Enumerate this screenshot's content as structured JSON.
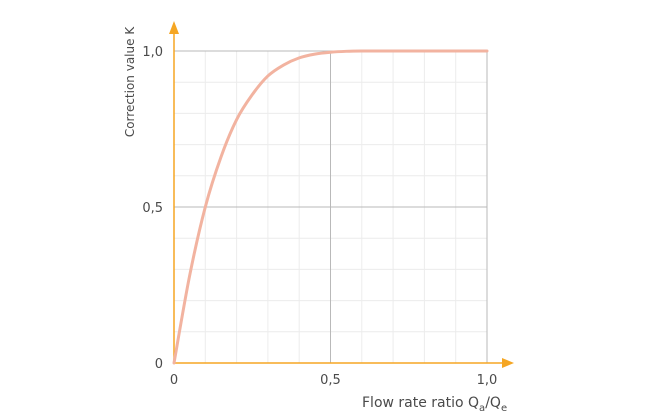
{
  "colors": {
    "axis": "#f5a623",
    "curve": "#f2b3a0",
    "grid_minor": "#ececec",
    "grid_major": "#b9b9b9",
    "text": "#4a4a4a"
  },
  "chart_data": {
    "type": "line",
    "title": "",
    "xlabel": "Flow rate ratio Qa/Qe",
    "xlabel_parts": {
      "main": "Flow rate ratio Q",
      "sub1": "a",
      "slash": "/Q",
      "sub2": "e"
    },
    "ylabel": "Correction value K",
    "xlim": [
      0,
      1
    ],
    "ylim": [
      0,
      1
    ],
    "x_ticks": [
      {
        "value": 0,
        "label": "0"
      },
      {
        "value": 0.5,
        "label": "0,5"
      },
      {
        "value": 1,
        "label": "1,0"
      }
    ],
    "y_ticks": [
      {
        "value": 0,
        "label": "0"
      },
      {
        "value": 0.5,
        "label": "0,5"
      },
      {
        "value": 1,
        "label": "1,0"
      }
    ],
    "grid": true,
    "series": [
      {
        "x": [
          0,
          0.05,
          0.1,
          0.15,
          0.2,
          0.25,
          0.3,
          0.35,
          0.4,
          0.45,
          0.5,
          0.55,
          0.6,
          0.7,
          0.8,
          0.9,
          1.0
        ],
        "y": [
          0,
          0.28,
          0.5,
          0.66,
          0.78,
          0.86,
          0.92,
          0.955,
          0.978,
          0.99,
          0.996,
          0.999,
          1.0,
          1.0,
          1.0,
          1.0,
          1.0
        ]
      }
    ]
  }
}
